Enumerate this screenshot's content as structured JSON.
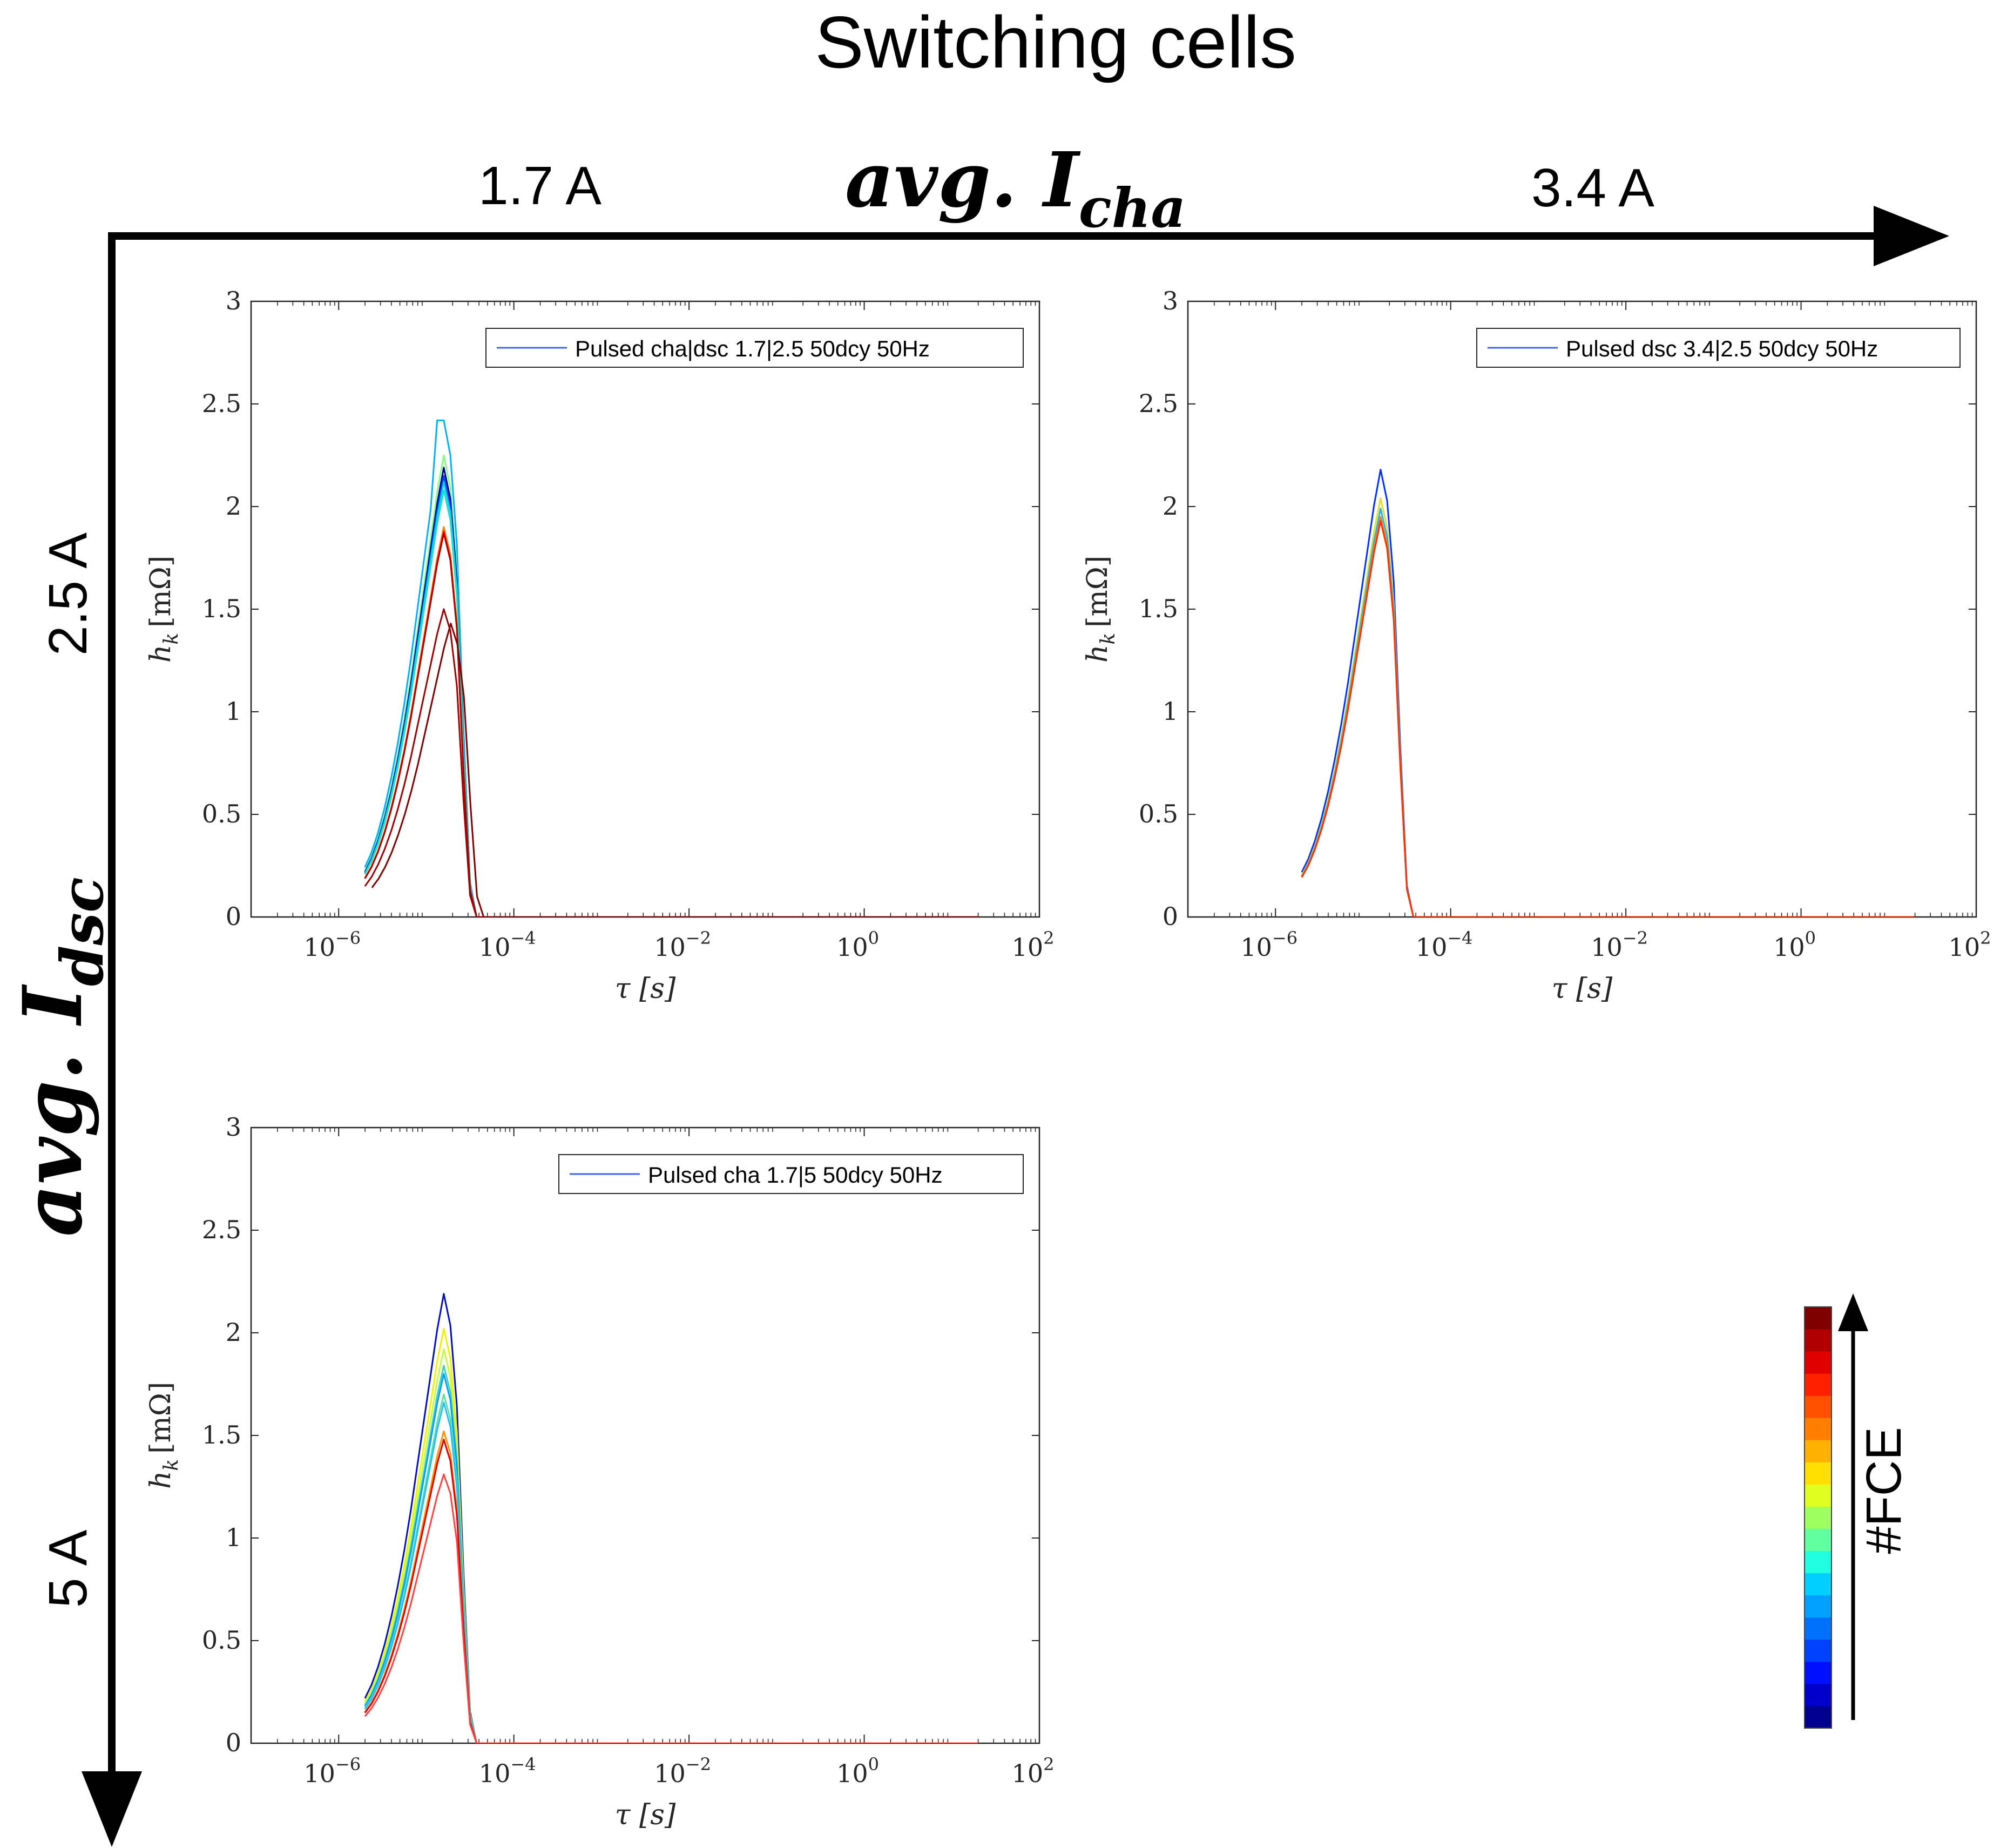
{
  "figure": {
    "title": "Switching cells",
    "x_axis_label_main": "avg. I",
    "x_axis_label_sub": "cha",
    "y_axis_label_main": "avg. I",
    "y_axis_label_sub": "dsc",
    "col_labels": [
      "1.7 A",
      "3.4 A"
    ],
    "row_labels": [
      "2.5 A",
      "5 A"
    ],
    "colorbar": {
      "label": "#FCE",
      "colors": [
        "#00008f",
        "#0000c8",
        "#0010ff",
        "#0040ff",
        "#0070ff",
        "#00a0ff",
        "#00d0ff",
        "#20ffe0",
        "#60ffa0",
        "#a0ff60",
        "#e0ff20",
        "#ffe000",
        "#ffb000",
        "#ff8000",
        "#ff5000",
        "#ff2000",
        "#e00000",
        "#b00000",
        "#800000"
      ]
    }
  },
  "chart_data": [
    {
      "type": "line",
      "legend": "Pulsed cha|dsc 1.7|2.5 50dcy 50Hz",
      "xlabel": "τ [s]",
      "ylabel_main": "h",
      "ylabel_sub": "k",
      "ylabel_unit": "[mΩ]",
      "xscale": "log",
      "xlim": [
        1e-07,
        100
      ],
      "ylim": [
        0,
        3
      ],
      "x_tick_labels": [
        {
          "base": "10",
          "exp": "−6"
        },
        {
          "base": "10",
          "exp": "−4"
        },
        {
          "base": "10",
          "exp": "−2"
        },
        {
          "base": "10",
          "exp": "0"
        },
        {
          "base": "10",
          "exp": "2"
        }
      ],
      "y_tick_labels": [
        "0",
        "0.5",
        "1",
        "1.5",
        "2",
        "2.5",
        "3"
      ],
      "curves": [
        {
          "color": "#00b0ff",
          "peak": 2.42,
          "flat": true
        },
        {
          "color": "#80ff80",
          "peak": 2.25
        },
        {
          "color": "#000090",
          "peak": 2.19
        },
        {
          "color": "#0040ff",
          "peak": 2.15
        },
        {
          "color": "#00d0ff",
          "peak": 2.12
        },
        {
          "color": "#20e0c0",
          "peak": 2.08
        },
        {
          "color": "#ff8000",
          "peak": 1.9
        },
        {
          "color": "#ff2000",
          "peak": 1.88
        },
        {
          "color": "#b00000",
          "peak": 1.87
        },
        {
          "color": "#a00000",
          "peak": 1.5
        },
        {
          "color": "#800000",
          "peak": 1.43,
          "shift": 0.08
        }
      ]
    },
    {
      "type": "line",
      "legend": "Pulsed dsc 3.4|2.5 50dcy 50Hz",
      "xlabel": "τ [s]",
      "ylabel_main": "h",
      "ylabel_sub": "k",
      "ylabel_unit": "[mΩ]",
      "xscale": "log",
      "xlim": [
        1e-07,
        100
      ],
      "ylim": [
        0,
        3
      ],
      "x_tick_labels": [
        {
          "base": "10",
          "exp": "−6"
        },
        {
          "base": "10",
          "exp": "−4"
        },
        {
          "base": "10",
          "exp": "−2"
        },
        {
          "base": "10",
          "exp": "0"
        },
        {
          "base": "10",
          "exp": "2"
        }
      ],
      "y_tick_labels": [
        "0",
        "0.5",
        "1",
        "1.5",
        "2",
        "2.5",
        "3"
      ],
      "curves": [
        {
          "color": "#0030ff",
          "peak": 2.18
        },
        {
          "color": "#e0e020",
          "peak": 2.04
        },
        {
          "color": "#20b0ff",
          "peak": 1.99
        },
        {
          "color": "#ff8000",
          "peak": 1.95
        },
        {
          "color": "#ff3000",
          "peak": 1.93
        }
      ]
    },
    {
      "type": "line",
      "legend": "Pulsed cha 1.7|5 50dcy 50Hz",
      "xlabel": "τ [s]",
      "ylabel_main": "h",
      "ylabel_sub": "k",
      "ylabel_unit": "[mΩ]",
      "xscale": "log",
      "xlim": [
        1e-07,
        100
      ],
      "ylim": [
        0,
        3
      ],
      "x_tick_labels": [
        {
          "base": "10",
          "exp": "−6"
        },
        {
          "base": "10",
          "exp": "−4"
        },
        {
          "base": "10",
          "exp": "−2"
        },
        {
          "base": "10",
          "exp": "0"
        },
        {
          "base": "10",
          "exp": "2"
        }
      ],
      "y_tick_labels": [
        "0",
        "0.5",
        "1",
        "1.5",
        "2",
        "2.5",
        "3"
      ],
      "curves": [
        {
          "color": "#0010c0",
          "peak": 2.19
        },
        {
          "color": "#f0f000",
          "peak": 2.02
        },
        {
          "color": "#c0ff40",
          "peak": 1.92
        },
        {
          "color": "#40d0c0",
          "peak": 1.84
        },
        {
          "color": "#00a0ff",
          "peak": 1.8
        },
        {
          "color": "#60e0a0",
          "peak": 1.7
        },
        {
          "color": "#20c0ff",
          "peak": 1.66
        },
        {
          "color": "#ff9000",
          "peak": 1.52
        },
        {
          "color": "#e00000",
          "peak": 1.48
        },
        {
          "color": "#ff4040",
          "peak": 1.31
        }
      ]
    }
  ]
}
